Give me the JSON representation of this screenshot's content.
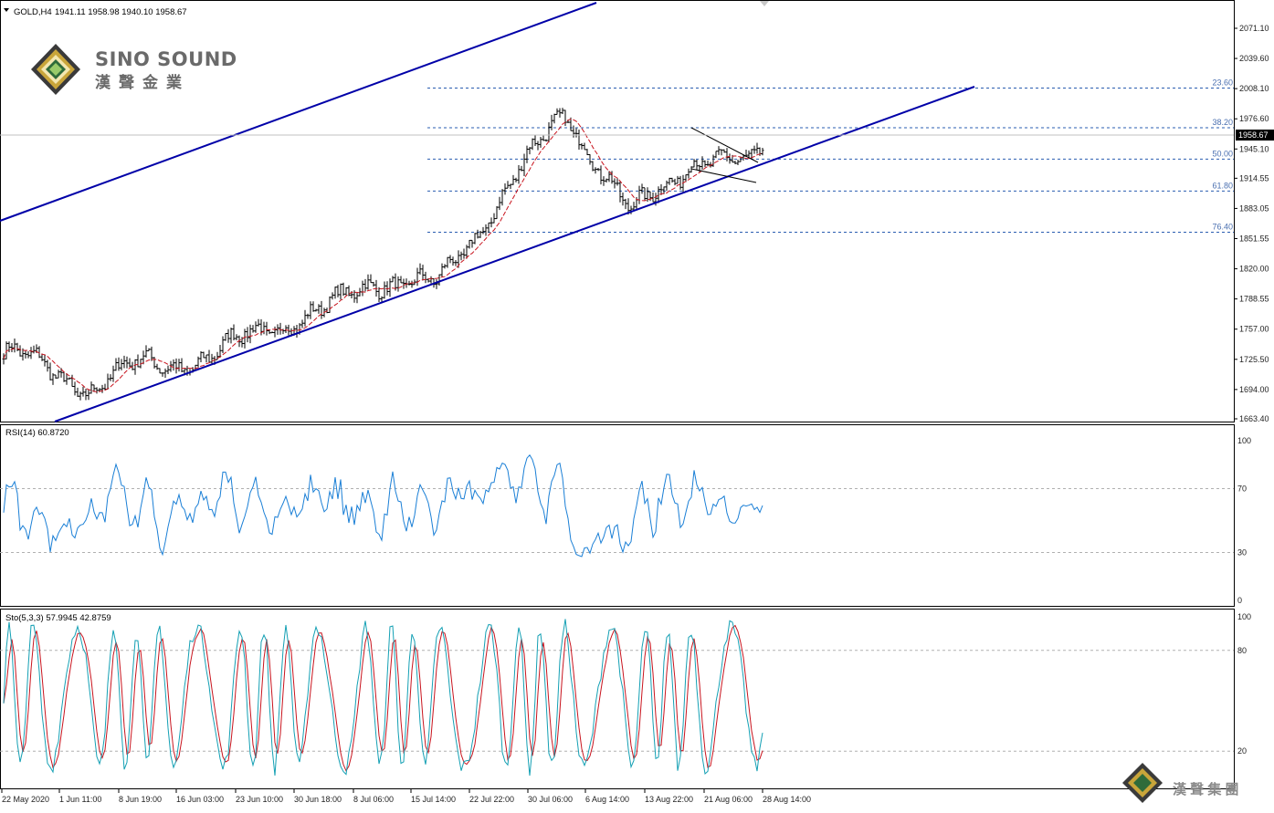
{
  "header": {
    "symbol": "GOLD,H4",
    "ohlc": "1941.11 1958.98 1940.10 1958.67"
  },
  "logo": {
    "brand": "SINO SOUND",
    "brand_cn": "漢聲金業",
    "watermark_cn": "漢 聲 集 團"
  },
  "price_panel": {
    "current_price": "1958.67",
    "y_ticks": [
      "2071.10",
      "2039.60",
      "2008.10",
      "1976.60",
      "1945.10",
      "1914.55",
      "1883.05",
      "1851.55",
      "1820.00",
      "1788.55",
      "1757.00",
      "1725.50",
      "1694.00",
      "1663.40"
    ],
    "fib_levels": [
      {
        "label": "23.60",
        "price": 2008.7
      },
      {
        "label": "38.20",
        "price": 1967.3
      },
      {
        "label": "50.00",
        "price": 1934.5
      },
      {
        "label": "61.80",
        "price": 1901.2
      },
      {
        "label": "76.40",
        "price": 1858.2
      }
    ],
    "colors": {
      "candle": "#000000",
      "ma": "#c8141e",
      "channel": "#0000a8",
      "fib": "#2a5db0",
      "rsi": "#1a7fd6",
      "sto_main": "#14a0b4",
      "sto_signal": "#c8141e"
    }
  },
  "rsi_panel": {
    "label": "RSI(14) 60.8720",
    "ticks": [
      "100",
      "70",
      "30",
      "0"
    ]
  },
  "sto_panel": {
    "label": "Sto(5,3,3) 57.9945 42.8759",
    "ticks": [
      "100",
      "80",
      "20"
    ]
  },
  "x_axis": {
    "labels": [
      "22 May 2020",
      "1 Jun 11:00",
      "8 Jun 19:00",
      "16 Jun 03:00",
      "23 Jun 10:00",
      "30 Jun 18:00",
      "8 Jul 06:00",
      "15 Jul 14:00",
      "22 Jul 22:00",
      "30 Jul 06:00",
      "6 Aug 14:00",
      "13 Aug 22:00",
      "21 Aug 06:00",
      "28 Aug 14:00"
    ]
  },
  "chart_data": {
    "type": "line",
    "series": [
      {
        "name": "GOLD,H4",
        "x": [
          "22 May 2020",
          "1 Jun 11:00",
          "8 Jun 19:00",
          "16 Jun 03:00",
          "23 Jun 10:00",
          "30 Jun 18:00",
          "8 Jul 06:00",
          "15 Jul 14:00",
          "22 Jul 22:00",
          "30 Jul 06:00",
          "6 Aug 14:00",
          "13 Aug 22:00",
          "21 Aug 06:00",
          "28 Aug 14:00"
        ],
        "values": [
          1732,
          1695,
          1722,
          1724,
          1760,
          1771,
          1810,
          1800,
          1895,
          1985,
          1875,
          1935,
          1925,
          1958.67
        ]
      }
    ],
    "ylim": [
      1663.4,
      2071.1
    ]
  }
}
